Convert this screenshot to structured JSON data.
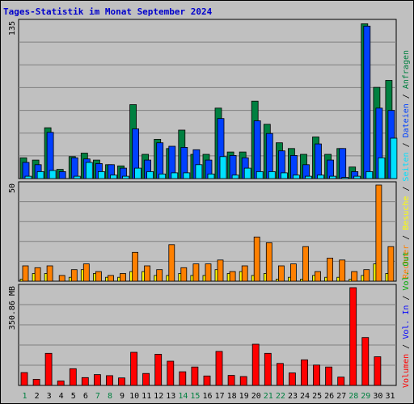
{
  "title": "Tages-Statistik im Monat September 2024",
  "colors": {
    "background": "#c0c0c0",
    "title": "#0000cc",
    "anfragen": "#008040",
    "dateien": "#0040ff",
    "seiten": "#00e0ff",
    "besuche": "#ffff00",
    "rechner": "#ff8000",
    "volumen": "#ff0000",
    "vol_in": "#0000ff",
    "vol_out": "#00aa00",
    "weekend_label": "#008040",
    "weekday_label": "#000000",
    "grid": "#808080"
  },
  "legend": {
    "top": [
      {
        "label": "Anfragen",
        "color_key": "anfragen"
      },
      {
        "label": "Dateien",
        "color_key": "dateien"
      },
      {
        "label": "Seiten",
        "color_key": "seiten"
      },
      {
        "label": "Besuche",
        "color_key": "besuche"
      },
      {
        "label": "Rechner",
        "color_key": "rechner"
      }
    ],
    "bottom": [
      {
        "label": "Vol. Out",
        "color_key": "vol_out"
      },
      {
        "label": "Vol. In",
        "color_key": "vol_in"
      },
      {
        "label": "Volumen",
        "color_key": "volumen"
      }
    ],
    "separator": "/"
  },
  "chart_data": [
    {
      "type": "bar",
      "panel": "hits",
      "ymax_label": "135",
      "ylim": [
        0,
        135
      ],
      "grid": true,
      "categories": [
        "1",
        "2",
        "3",
        "4",
        "5",
        "6",
        "7",
        "8",
        "9",
        "10",
        "11",
        "12",
        "13",
        "14",
        "15",
        "16",
        "17",
        "18",
        "19",
        "20",
        "21",
        "22",
        "23",
        "24",
        "25",
        "26",
        "27",
        "28",
        "29",
        "30",
        "31"
      ],
      "weekend_days": [
        "1",
        "7",
        "8",
        "14",
        "15",
        "21",
        "22",
        "28",
        "29"
      ],
      "series": [
        {
          "name": "Anfragen",
          "values": [
            18,
            16,
            44,
            8,
            19,
            22,
            16,
            12,
            11,
            64,
            21,
            34,
            26,
            42,
            21,
            21,
            61,
            23,
            23,
            67,
            47,
            31,
            26,
            21,
            36,
            21,
            26,
            10,
            134,
            79,
            85
          ]
        },
        {
          "name": "Dateien",
          "values": [
            14,
            12,
            40,
            6,
            18,
            17,
            13,
            12,
            9,
            43,
            16,
            31,
            28,
            27,
            25,
            16,
            52,
            20,
            18,
            50,
            39,
            24,
            20,
            12,
            30,
            16,
            26,
            6,
            132,
            61,
            59
          ]
        },
        {
          "name": "Seiten",
          "values": [
            2,
            6,
            7,
            0,
            2,
            14,
            6,
            3,
            2,
            9,
            6,
            4,
            5,
            5,
            12,
            4,
            19,
            3,
            9,
            6,
            6,
            5,
            3,
            2,
            3,
            2,
            1,
            2,
            6,
            18,
            35
          ]
        }
      ]
    },
    {
      "type": "bar",
      "panel": "visits",
      "ymax_label": "50",
      "ylim": [
        0,
        50
      ],
      "grid": true,
      "categories": [
        "1",
        "2",
        "3",
        "4",
        "5",
        "6",
        "7",
        "8",
        "9",
        "10",
        "11",
        "12",
        "13",
        "14",
        "15",
        "16",
        "17",
        "18",
        "19",
        "20",
        "21",
        "22",
        "23",
        "24",
        "25",
        "26",
        "27",
        "28",
        "29",
        "30",
        "31"
      ],
      "series": [
        {
          "name": "Besuche",
          "values": [
            1,
            4,
            4,
            0,
            2,
            6,
            4,
            2,
            2,
            5,
            5,
            3,
            3,
            4,
            3,
            3,
            6,
            4,
            5,
            3,
            4,
            1,
            2,
            1,
            3,
            2,
            2,
            1,
            3,
            9,
            4
          ]
        },
        {
          "name": "Rechner",
          "values": [
            8,
            7,
            8,
            3,
            6,
            9,
            5,
            3,
            4,
            15,
            8,
            6,
            19,
            7,
            9,
            9,
            11,
            5,
            8,
            23,
            20,
            8,
            9,
            18,
            5,
            12,
            11,
            5,
            6,
            50,
            18
          ]
        }
      ]
    },
    {
      "type": "bar",
      "panel": "volume",
      "ymax_label": "350.86 MB",
      "ylim": [
        0,
        350.86
      ],
      "grid": true,
      "categories": [
        "1",
        "2",
        "3",
        "4",
        "5",
        "6",
        "7",
        "8",
        "9",
        "10",
        "11",
        "12",
        "13",
        "14",
        "15",
        "16",
        "17",
        "18",
        "19",
        "20",
        "21",
        "22",
        "23",
        "24",
        "25",
        "26",
        "27",
        "28",
        "29",
        "30",
        "31"
      ],
      "x_labels": [
        "1",
        "2",
        "3",
        "4",
        "5",
        "6",
        "7",
        "8",
        "9",
        "10",
        "11",
        "12",
        "13",
        "14",
        "15",
        "16",
        "17",
        "18",
        "19",
        "20",
        "21",
        "22",
        "23",
        "24",
        "25",
        "26",
        "27",
        "28",
        "29",
        "30",
        "31"
      ],
      "series": [
        {
          "name": "Volumen",
          "values": [
            46,
            22,
            115,
            16,
            60,
            28,
            39,
            35,
            27,
            119,
            43,
            112,
            87,
            49,
            66,
            34,
            122,
            36,
            32,
            148,
            115,
            79,
            45,
            92,
            73,
            66,
            30,
            351,
            172,
            103,
            0
          ]
        }
      ]
    }
  ]
}
